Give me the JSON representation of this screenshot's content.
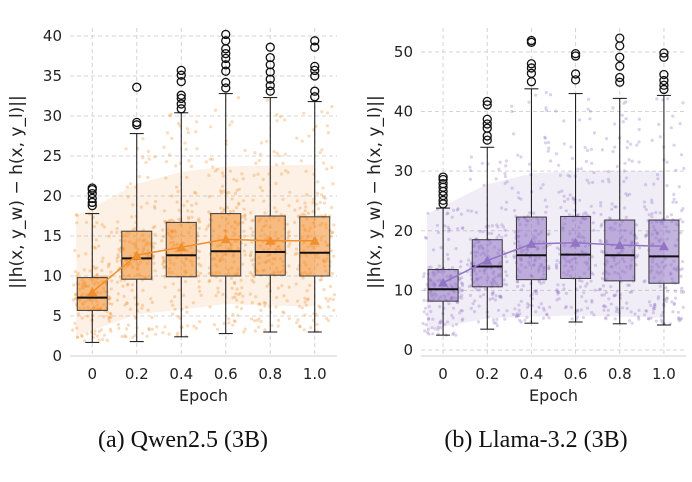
{
  "chart_data": [
    {
      "type": "box",
      "caption": "(a) Qwen2.5 (3B)",
      "xlabel": "Epoch",
      "ylabel": "||h(x, y_w) − h(x, y_l)||",
      "ylim": [
        0,
        41
      ],
      "yticks": [
        0,
        5,
        10,
        15,
        20,
        25,
        30,
        35,
        40
      ],
      "color": "#f28e2b",
      "categories": [
        "0",
        "0.2",
        "0.4",
        "0.6",
        "0.8",
        "1.0"
      ],
      "boxes": [
        {
          "category": "0",
          "whisker_low": 1.7,
          "q1": 5.7,
          "median": 7.3,
          "q3": 9.8,
          "whisker_high": 17.8,
          "mean": 8.0,
          "outliers": [
            18.8,
            19.2,
            19.7,
            20.3,
            20.8,
            21.0
          ]
        },
        {
          "category": "0.2",
          "whisker_low": 1.8,
          "q1": 9.6,
          "median": 12.2,
          "q3": 15.6,
          "whisker_high": 27.8,
          "mean": 12.6,
          "outliers": [
            28.9,
            29.2,
            33.6
          ]
        },
        {
          "category": "0.4",
          "whisker_low": 2.4,
          "q1": 9.9,
          "median": 12.6,
          "q3": 16.7,
          "whisker_high": 30.4,
          "mean": 13.6,
          "outliers": [
            30.9,
            31.5,
            32.2,
            32.6,
            34.3,
            35.1,
            35.7
          ]
        },
        {
          "category": "0.6",
          "whisker_low": 2.8,
          "q1": 10.0,
          "median": 13.1,
          "q3": 17.8,
          "whisker_high": 32.8,
          "mean": 14.6,
          "outliers": [
            33.5,
            34.2,
            35.6,
            36.4,
            37.2,
            37.8,
            38.4,
            39.4,
            40.2
          ]
        },
        {
          "category": "0.8",
          "whisker_low": 3.0,
          "q1": 10.1,
          "median": 13.0,
          "q3": 17.5,
          "whisker_high": 32.3,
          "mean": 14.4,
          "outliers": [
            33.1,
            33.8,
            34.6,
            35.5,
            36.4,
            37.3,
            38.6
          ]
        },
        {
          "category": "1.0",
          "whisker_low": 3.0,
          "q1": 10.0,
          "median": 12.9,
          "q3": 17.4,
          "whisker_high": 31.8,
          "mean": 14.4,
          "outliers": [
            32.4,
            33.1,
            35.0,
            35.7,
            36.2,
            38.6,
            39.4
          ]
        }
      ],
      "band": {
        "lower": [
          2.5,
          5.2,
          5.8,
          6.5,
          6.3,
          6.2
        ],
        "upper": [
          17.5,
          21.5,
          23.0,
          23.7,
          23.8,
          23.9
        ]
      }
    },
    {
      "type": "box",
      "caption": "(b) Llama-3.2 (3B)",
      "xlabel": "Epoch",
      "ylabel": "||h(x, y_w) − h(x, y_l)||",
      "ylim": [
        -1,
        54
      ],
      "yticks": [
        0,
        10,
        20,
        30,
        40,
        50
      ],
      "color": "#9274c4",
      "categories": [
        "0",
        "0.2",
        "0.4",
        "0.6",
        "0.8",
        "1.0"
      ],
      "boxes": [
        {
          "category": "0",
          "whisker_low": 2.5,
          "q1": 8.2,
          "median": 10.2,
          "q3": 13.5,
          "whisker_high": 23.8,
          "mean": 11.3,
          "outliers": [
            24.5,
            25.1,
            25.9,
            26.6,
            27.3,
            27.9,
            28.6,
            29.0
          ]
        },
        {
          "category": "0.2",
          "whisker_low": 3.5,
          "q1": 10.6,
          "median": 14.0,
          "q3": 18.5,
          "whisker_high": 34.0,
          "mean": 15.0,
          "outliers": [
            35.2,
            35.9,
            37.2,
            37.9,
            38.7,
            41.1,
            41.7
          ]
        },
        {
          "category": "0.4",
          "whisker_low": 4.5,
          "q1": 11.8,
          "median": 15.9,
          "q3": 22.3,
          "whisker_high": 43.8,
          "mean": 17.8,
          "outliers": [
            45.0,
            46.4,
            47.3,
            48.0,
            51.6,
            51.9
          ]
        },
        {
          "category": "0.6",
          "whisker_low": 4.7,
          "q1": 12.0,
          "median": 16.0,
          "q3": 22.4,
          "whisker_high": 43.0,
          "mean": 18.0,
          "outliers": [
            45.3,
            46.3,
            49.3,
            49.7
          ]
        },
        {
          "category": "0.8",
          "whisker_low": 4.4,
          "q1": 11.6,
          "median": 15.9,
          "q3": 21.8,
          "whisker_high": 42.2,
          "mean": 17.6,
          "outliers": [
            44.9,
            45.7,
            47.6,
            49.1,
            51.0,
            52.3
          ]
        },
        {
          "category": "1.0",
          "whisker_low": 4.2,
          "q1": 11.2,
          "median": 15.7,
          "q3": 21.8,
          "whisker_high": 42.7,
          "mean": 17.4,
          "outliers": [
            43.7,
            44.4,
            45.2,
            46.2,
            49.1,
            49.8
          ]
        }
      ],
      "band": {
        "lower": [
          3.4,
          5.3,
          5.6,
          5.8,
          5.6,
          5.4
        ],
        "upper": [
          22.8,
          27.8,
          29.6,
          30.0,
          30.0,
          30.0
        ]
      }
    }
  ]
}
